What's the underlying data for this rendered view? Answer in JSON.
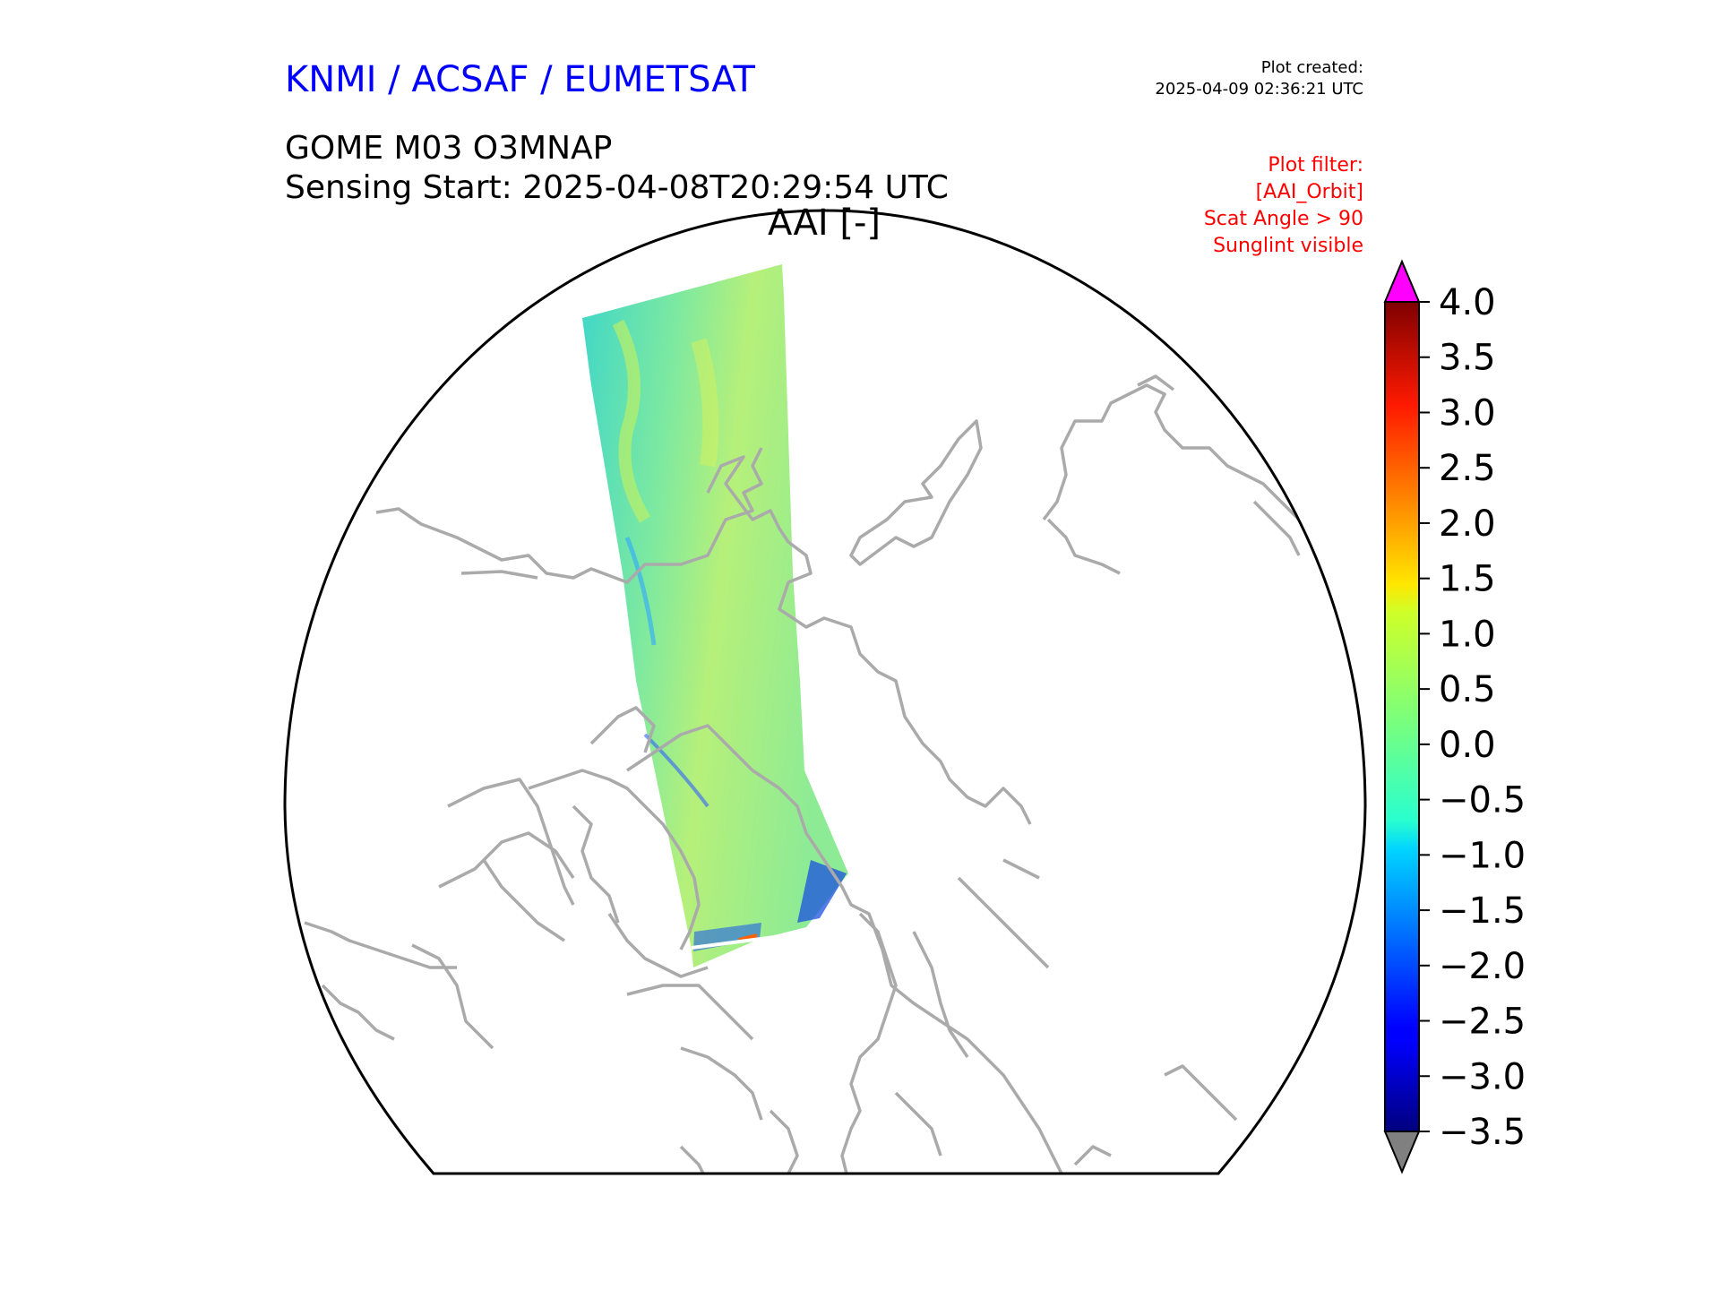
{
  "header": {
    "org": "KNMI / ACSAF / EUMETSAT",
    "created_label": "Plot created:",
    "created_time": "2025-04-09 02:36:21 UTC",
    "product": "GOME M03 O3MNAP",
    "sensing": "Sensing Start: 2025-04-08T20:29:54 UTC",
    "variable": "AAI [-]"
  },
  "filter": {
    "title": "Plot filter:",
    "lines": [
      "[AAI_Orbit]",
      "Scat Angle > 90",
      "Sunglint visible"
    ]
  },
  "colorbar": {
    "min": -3.5,
    "max": 4.0,
    "tick_labels": [
      "4.0",
      "3.5",
      "3.0",
      "2.5",
      "2.0",
      "1.5",
      "1.0",
      "0.5",
      "0.0",
      "−0.5",
      "−1.0",
      "−1.5",
      "−2.0",
      "−2.5",
      "−3.0",
      "−3.5"
    ],
    "tick_values": [
      4.0,
      3.5,
      3.0,
      2.5,
      2.0,
      1.5,
      1.0,
      0.5,
      0.0,
      -0.5,
      -1.0,
      -1.5,
      -2.0,
      -2.5,
      -3.0,
      -3.5
    ],
    "over_color": "#ff00ff",
    "under_color": "#808080"
  },
  "colors": {
    "title_blue": "#0000ff",
    "filter_red": "#ff0000",
    "coastline": "#aaaaaa",
    "swath_base": "#6fe8b0"
  }
}
